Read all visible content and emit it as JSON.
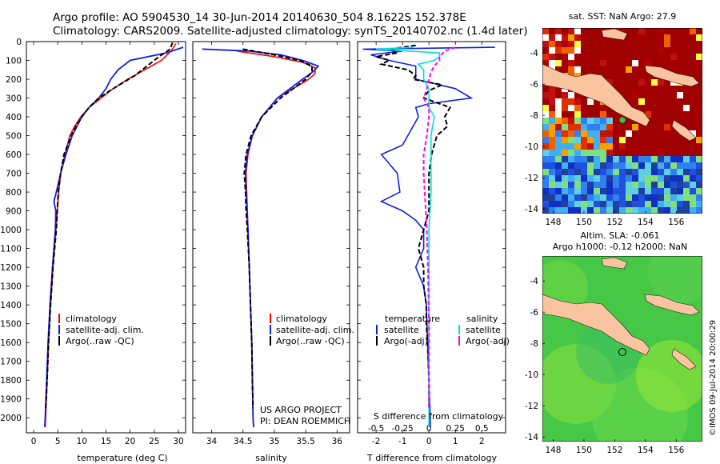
{
  "header": {
    "line1": "Argo profile: AO 5904530_14 30-Jun-2014 20140630_504 8.1622S 152.378E",
    "line2": "Climatology: CARS2009. Satellite-adjusted climatology: synTS_20140702.nc (1.4d later)"
  },
  "colors": {
    "climatology": "#ff0000",
    "satellite": "#1020e0",
    "argo": "#000000",
    "salinity_sat": "#00e0e0",
    "salinity_argo": "#ff00ff"
  },
  "depth_axis": {
    "ticks": [
      0,
      100,
      200,
      300,
      400,
      500,
      600,
      700,
      800,
      900,
      1000,
      1100,
      1200,
      1300,
      1400,
      1500,
      1600,
      1700,
      1800,
      1900,
      2000
    ],
    "ylim": [
      0,
      2080
    ]
  },
  "chart_data": [
    {
      "type": "line",
      "name": "temperature-profile",
      "xlabel": "temperature (deg C)",
      "xlim": [
        -1.5,
        31.5
      ],
      "xticks": [
        0,
        5,
        10,
        15,
        20,
        25,
        30
      ],
      "legend": [
        "climatology",
        "satellite-adj. clim.",
        "Argo(..raw -QC)"
      ],
      "series": [
        {
          "name": "climatology",
          "depth": [
            10,
            50,
            100,
            150,
            200,
            250,
            300,
            350,
            400,
            450,
            500,
            600,
            700,
            800,
            900,
            1000,
            1200,
            1400,
            1600,
            1800,
            2000,
            2050
          ],
          "values": [
            29.5,
            28.5,
            26.5,
            23,
            19.5,
            16.5,
            14,
            11.5,
            9.8,
            8.5,
            7.5,
            6.5,
            5.6,
            5.2,
            4.9,
            4.6,
            4.0,
            3.5,
            3.1,
            2.8,
            2.5,
            2.4
          ]
        },
        {
          "name": "satellite",
          "depth": [
            30,
            60,
            100,
            150,
            200,
            250,
            300,
            350,
            400,
            450,
            500,
            600,
            700,
            800,
            850,
            900,
            1000,
            1200,
            1400,
            1600,
            1800,
            2000,
            2050
          ],
          "values": [
            31,
            27.5,
            20,
            17.5,
            16,
            15,
            13.5,
            11.5,
            10,
            9,
            8,
            6.7,
            5.6,
            4.7,
            4.2,
            4.6,
            4.5,
            3.9,
            3.4,
            3.0,
            2.7,
            2.4,
            2.3
          ]
        },
        {
          "name": "argo",
          "depth": [
            5,
            40,
            80,
            130,
            180,
            250,
            300,
            350,
            400,
            450,
            500,
            600,
            700,
            800,
            900,
            1000,
            1200,
            1400,
            1600,
            1800,
            1950
          ],
          "values": [
            28.8,
            28.3,
            26,
            23.5,
            21,
            16.5,
            13.5,
            11.5,
            10,
            8.8,
            7.8,
            6.3,
            5.6,
            5.1,
            4.9,
            4.7,
            4.0,
            3.5,
            3.1,
            2.8,
            2.5
          ]
        }
      ]
    },
    {
      "type": "line",
      "name": "salinity-profile",
      "xlabel": "salinity",
      "xlim": [
        33.7,
        36.2
      ],
      "xticks": [
        34,
        34.5,
        35,
        35.5,
        36
      ],
      "legend": [
        "climatology",
        "satellite-adj. clim.",
        "Argo(..raw -QC)"
      ],
      "annotation": [
        "US ARGO PROJECT",
        "PI: DEAN ROEMMICH"
      ],
      "series": [
        {
          "name": "climatology",
          "depth": [
            50,
            80,
            110,
            140,
            170,
            200,
            250,
            300,
            400,
            500,
            600,
            700,
            800,
            1000,
            1200,
            1400,
            1600,
            1800,
            2000,
            2050
          ],
          "values": [
            34.4,
            35.0,
            35.45,
            35.65,
            35.65,
            35.55,
            35.3,
            35.05,
            34.8,
            34.65,
            34.58,
            34.55,
            34.56,
            34.58,
            34.6,
            34.62,
            34.64,
            34.65,
            34.66,
            34.67
          ]
        },
        {
          "name": "satellite",
          "depth": [
            40,
            50,
            70,
            100,
            130,
            160,
            200,
            250,
            300,
            400,
            500,
            600,
            700,
            800,
            1000,
            1200,
            1400,
            1600,
            1800,
            2000,
            2050
          ],
          "values": [
            33.85,
            34.6,
            35.1,
            35.45,
            35.7,
            35.62,
            35.45,
            35.25,
            35.05,
            34.8,
            34.65,
            34.57,
            34.54,
            34.55,
            34.58,
            34.6,
            34.62,
            34.64,
            34.65,
            34.66,
            34.67
          ]
        },
        {
          "name": "argo",
          "depth": [
            40,
            70,
            100,
            130,
            160,
            200,
            250,
            300,
            400,
            500,
            600,
            700,
            800,
            900,
            1000,
            1200,
            1400,
            1600,
            1800,
            1950
          ],
          "values": [
            34.5,
            35.0,
            35.4,
            35.6,
            35.6,
            35.5,
            35.3,
            35.1,
            34.8,
            34.63,
            34.55,
            34.52,
            34.54,
            34.55,
            34.57,
            34.6,
            34.62,
            34.64,
            34.65,
            34.66
          ]
        }
      ]
    },
    {
      "type": "line",
      "name": "difference-profile",
      "xlabel": "T difference from climatology",
      "x2label": "S difference from climatology",
      "xlim": [
        -2.7,
        2.9
      ],
      "xticks": [
        -2,
        -1,
        0,
        1,
        2
      ],
      "x2lim": [
        -0.675,
        0.725
      ],
      "x2ticks": [
        -0.5,
        -0.25,
        0,
        0.25,
        0.5
      ],
      "x2ticklabels": [
        "-0.5",
        "-0.25",
        "0",
        "0.25",
        "0.5"
      ],
      "legend_headers": [
        "temperature",
        "salinity"
      ],
      "legend": [
        "satellite",
        "Argo(-adj)",
        "satellite",
        "Argo(-adj)"
      ],
      "series": [
        {
          "name": "T satellite",
          "depth": [
            30,
            40,
            50,
            70,
            100,
            130,
            160,
            200,
            250,
            300,
            330,
            350,
            400,
            450,
            500,
            550,
            600,
            700,
            800,
            850,
            900,
            950,
            1000,
            1100,
            1200,
            1300,
            1400,
            1600,
            1800,
            2000,
            2050
          ],
          "values": [
            2.5,
            -2.5,
            -1.0,
            -2.2,
            -1.5,
            -0.5,
            -0.5,
            -0.5,
            1.0,
            1.6,
            0.0,
            -0.5,
            -0.4,
            -0.6,
            -0.8,
            -1.0,
            -1.8,
            -1.2,
            -1.1,
            -1.8,
            -1.0,
            -0.5,
            -0.2,
            -0.2,
            -0.5,
            -0.2,
            -0.1,
            -0.05,
            0.0,
            0.05,
            0.05
          ]
        },
        {
          "name": "T argo",
          "depth": [
            20,
            40,
            60,
            80,
            100,
            120,
            150,
            180,
            200,
            230,
            260,
            300,
            350,
            400,
            450,
            500,
            550,
            600,
            700,
            800,
            900,
            1000,
            1100,
            1200,
            1300,
            1400,
            1500,
            1600,
            1800,
            1950
          ],
          "values": [
            -0.5,
            -1.5,
            -1.2,
            -2.0,
            -1.5,
            -1.8,
            -0.8,
            -0.5,
            -0.6,
            0.5,
            0.0,
            -0.2,
            0.8,
            0.6,
            0.7,
            0.3,
            0.2,
            0.1,
            0.0,
            0.0,
            0.0,
            -0.2,
            -0.4,
            -0.2,
            -0.2,
            -0.1,
            -0.1,
            -0.05,
            0.0,
            0.0
          ]
        },
        {
          "name": "S satellite",
          "depth": [
            30,
            40,
            60,
            80,
            100,
            120,
            150,
            200,
            250,
            300,
            350,
            400,
            500,
            600,
            700,
            800,
            1000,
            1200,
            1500,
            1800,
            2000,
            2050
          ],
          "values": [
            -0.15,
            -0.5,
            0.1,
            0.1,
            0.05,
            -0.1,
            -0.05,
            -0.05,
            0.0,
            0.0,
            0.0,
            0.05,
            0.02,
            0.02,
            0.02,
            0.02,
            0.0,
            0.0,
            0.0,
            0.0,
            0.0,
            0.0
          ]
        },
        {
          "name": "S argo",
          "depth": [
            30,
            50,
            80,
            100,
            130,
            160,
            200,
            250,
            300,
            350,
            400,
            500,
            600,
            700,
            800,
            900,
            1000,
            1200,
            1500,
            1800,
            1950
          ],
          "values": [
            0.25,
            0.15,
            0.1,
            0.1,
            0.05,
            0.02,
            0.0,
            -0.02,
            -0.05,
            0.0,
            0.0,
            -0.02,
            -0.05,
            -0.05,
            -0.04,
            -0.03,
            -0.02,
            -0.01,
            0.0,
            0.0,
            0.0
          ]
        }
      ]
    },
    {
      "type": "heatmap",
      "name": "sst-map",
      "title": "sat. SST: NaN Argo: 27.9",
      "xlim": [
        147.3,
        157.7
      ],
      "ylim": [
        -14.3,
        -2.4
      ],
      "xticks": [
        148,
        150,
        152,
        154,
        156
      ],
      "yticks": [
        -4,
        -6,
        -8,
        -10,
        -12,
        -14
      ],
      "profile_marker": {
        "lon": 152.378,
        "lat": -8.1622
      }
    },
    {
      "type": "heatmap",
      "name": "sla-map",
      "title": "Altim. SLA: -0.061",
      "subtitle": "Argo h1000: -0.12 h2000: NaN",
      "xlim": [
        147.3,
        157.7
      ],
      "ylim": [
        -14.3,
        -2.4
      ],
      "xticks": [
        148,
        150,
        152,
        154,
        156
      ],
      "yticks": [
        -4,
        -6,
        -8,
        -10,
        -12,
        -14
      ],
      "profile_marker": {
        "lon": 152.378,
        "lat": -8.1622
      }
    }
  ],
  "footer": {
    "credit": "©IMOS 09-Jul-2014 20:00:29"
  }
}
